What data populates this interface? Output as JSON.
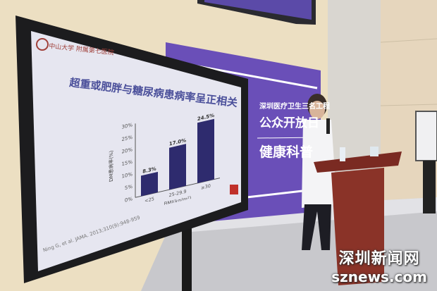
{
  "slide": {
    "logo_text": "中山大学 附属第七医院",
    "title": "超重或肥胖与糖尿病患病率呈正相关",
    "citation": "Ning G, et al. JAMA. 2013;310(9):948-959"
  },
  "backdrop": {
    "line1": "深圳医疗卫生三名工程",
    "line2": "公众开放日",
    "line3": "健康科普"
  },
  "watermark": {
    "line1": "深圳新闻网",
    "line2": "sznews.com"
  },
  "colors": {
    "backdrop_purple": "#6a4fb8",
    "bar": "#2e2b6e",
    "title": "#4a4f9a"
  },
  "chart_data": {
    "type": "bar",
    "categories": [
      "<25",
      "25-29.9",
      "≥30"
    ],
    "values": [
      8.3,
      17.0,
      24.5
    ],
    "data_labels": [
      "8.3%",
      "17.0%",
      "24.5%"
    ],
    "xlabel": "BMI(kg/m²)",
    "ylabel": "DM患病率(%)",
    "ylim": [
      0,
      30
    ],
    "yticks": [
      "0%",
      "5%",
      "10%",
      "15%",
      "20%",
      "25%",
      "30%"
    ],
    "grid": false
  }
}
